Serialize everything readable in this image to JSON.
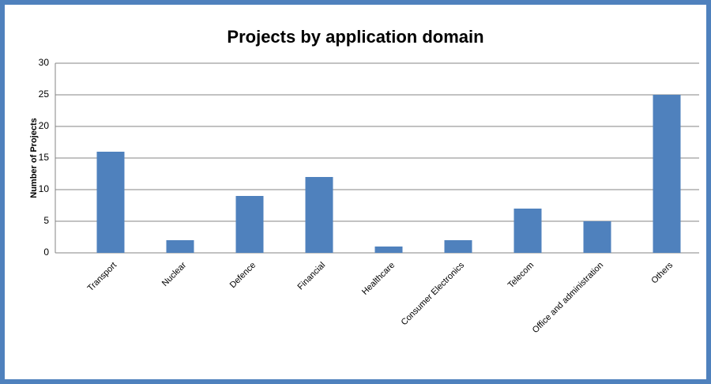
{
  "chart_data": {
    "type": "bar",
    "title": "Projects by application domain",
    "y_label": "Number of Projects",
    "categories": [
      "Transport",
      "Nuclear",
      "Defence",
      "Financial",
      "Healthcare",
      "Consumer Electronics",
      "Telecom",
      "Office and administration",
      "Others"
    ],
    "values": [
      16,
      2,
      9,
      12,
      1,
      2,
      7,
      5,
      25
    ],
    "color": "#4f81bd",
    "ylim": [
      0,
      30
    ],
    "yticks": [
      0,
      5,
      10,
      15,
      20,
      25,
      30
    ],
    "grid": true
  }
}
